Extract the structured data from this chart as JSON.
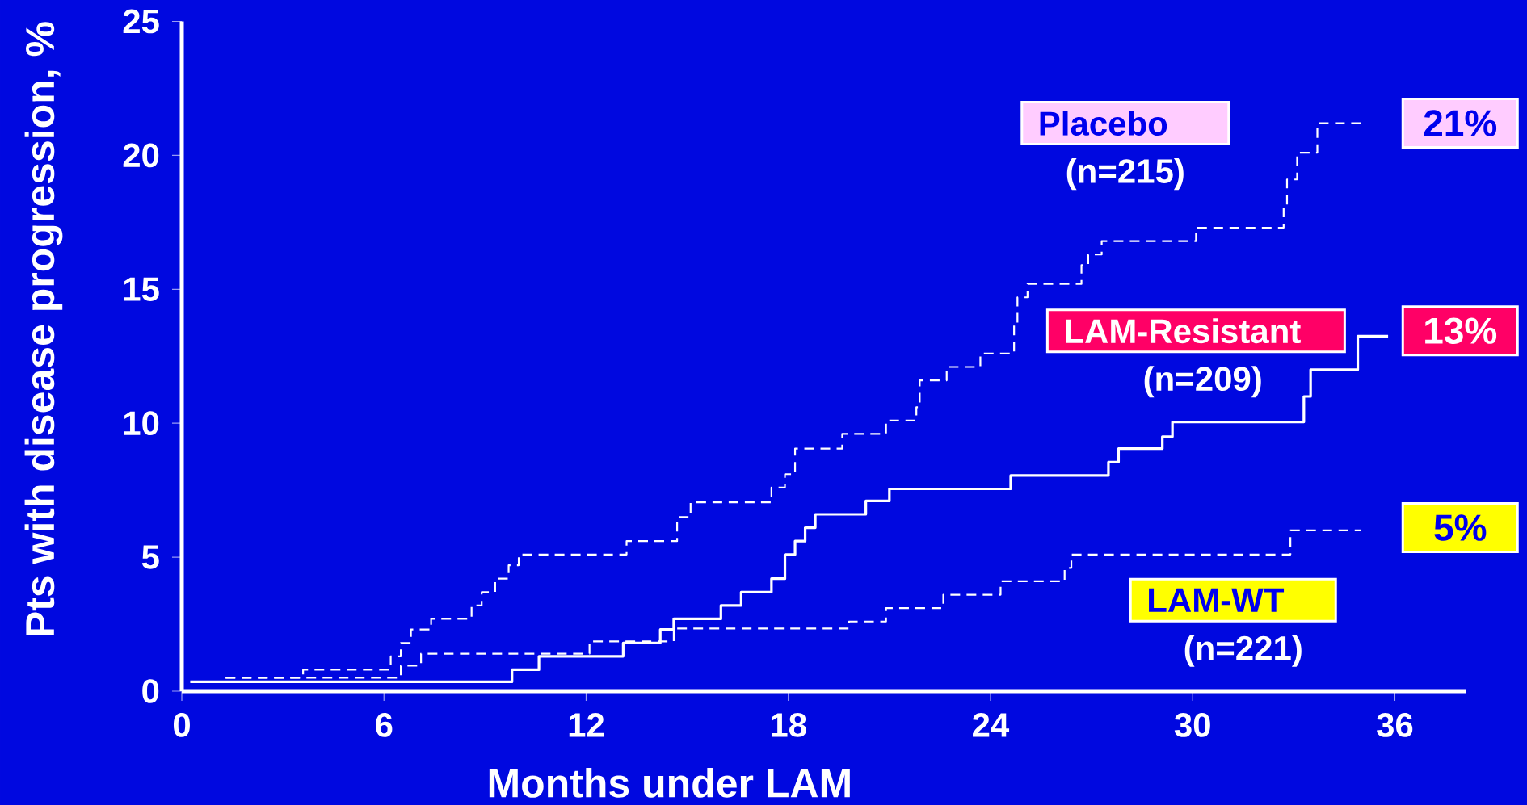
{
  "chart_data": {
    "type": "step",
    "xlabel": "Months under LAM",
    "ylabel": "Pts with disease progression, %",
    "xlim": [
      0,
      38.1
    ],
    "ylim": [
      0,
      25
    ],
    "xticks": [
      0,
      6,
      12,
      18,
      24,
      30,
      36
    ],
    "yticks": [
      0,
      5,
      10,
      15,
      20,
      25
    ],
    "grid": false,
    "legend": false,
    "series": [
      {
        "name": "Placebo",
        "color": "#ffffff",
        "line_style": "dashed",
        "x": [
          1.3,
          3.6,
          6.2,
          6.5,
          6.8,
          7.4,
          8.6,
          8.9,
          9.3,
          9.7,
          10.0,
          13.2,
          14.7,
          15.1,
          17.5,
          17.9,
          18.2,
          19.6,
          20.9,
          21.8,
          21.9,
          22.7,
          23.7,
          24.7,
          24.8,
          25.1,
          26.7,
          26.9,
          27.3,
          30.1,
          32.7,
          32.8,
          33.1,
          33.7,
          35.0
        ],
        "values": [
          0.5,
          0.8,
          1.3,
          1.8,
          2.3,
          2.7,
          3.2,
          3.7,
          4.2,
          4.7,
          5.1,
          5.6,
          6.5,
          7.05,
          7.6,
          8.1,
          9.05,
          9.6,
          10.1,
          10.6,
          11.6,
          12.1,
          12.6,
          13.7,
          14.7,
          15.2,
          15.9,
          16.3,
          16.8,
          17.3,
          18.1,
          19.1,
          20.1,
          21.2,
          21.2
        ]
      },
      {
        "name": "LAM-Resistant",
        "color": "#ffffff",
        "line_style": "solid",
        "x": [
          0.25,
          9.8,
          10.6,
          13.1,
          14.2,
          14.6,
          16.0,
          16.6,
          17.5,
          17.9,
          18.2,
          18.5,
          18.8,
          20.3,
          21.0,
          24.6,
          27.5,
          27.8,
          29.1,
          29.4,
          33.3,
          33.5,
          34.9,
          35.8
        ],
        "values": [
          0.35,
          0.8,
          1.3,
          1.8,
          2.3,
          2.7,
          3.2,
          3.7,
          4.2,
          5.1,
          5.6,
          6.1,
          6.6,
          7.1,
          7.55,
          8.05,
          8.55,
          9.05,
          9.5,
          10.05,
          11.0,
          12.0,
          13.25,
          13.25
        ]
      },
      {
        "name": "LAM-WT",
        "color": "#ffffff",
        "line_style": "dashed",
        "x": [
          1.3,
          6.5,
          7.1,
          12.1,
          14.6,
          19.8,
          20.9,
          22.6,
          24.3,
          26.2,
          26.4,
          32.9,
          35.0
        ],
        "values": [
          0.5,
          0.95,
          1.4,
          1.86,
          2.34,
          2.6,
          3.1,
          3.6,
          4.1,
          4.6,
          5.1,
          6.0,
          6.0
        ]
      }
    ],
    "annotations": [
      "(n=215)",
      "(n=209)",
      "(n=221)",
      "21%",
      "13%",
      "5%"
    ]
  }
}
